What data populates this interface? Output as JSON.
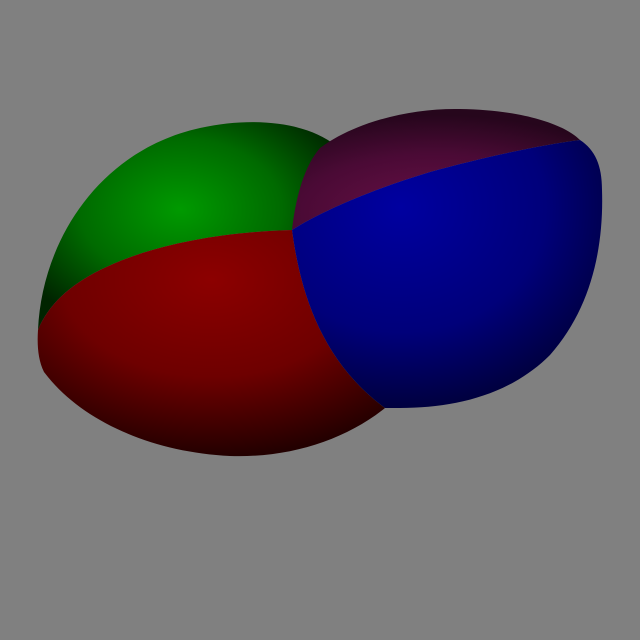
{
  "scene": {
    "background_color": "#808080",
    "shapes": [
      {
        "name": "green-lobe",
        "color": "#008000"
      },
      {
        "name": "red-lobe",
        "color": "#800000"
      },
      {
        "name": "purple-lobe",
        "color": "#5a1a45"
      },
      {
        "name": "blue-lobe",
        "color": "#000090"
      }
    ]
  }
}
